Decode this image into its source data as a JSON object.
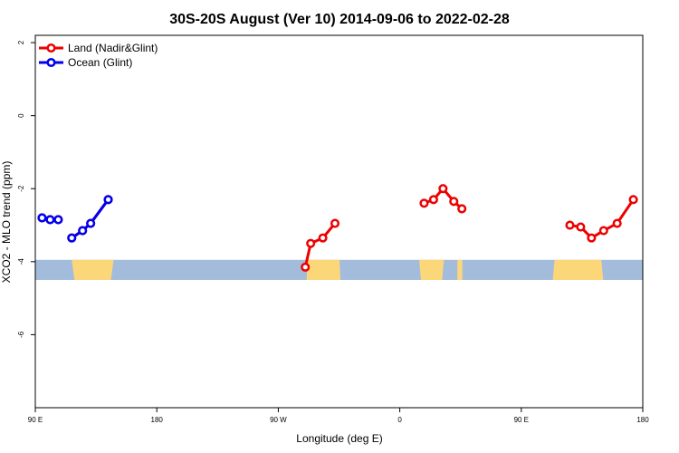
{
  "chart_data": {
    "type": "line",
    "title": "30S-20S August (Ver 10)   2014-09-06 to 2022-02-28",
    "xlabel": "Longitude (deg E)",
    "ylabel": "XCO2 - MLO trend (ppm)",
    "xlim": [
      90,
      540
    ],
    "ylim": [
      -8,
      2.2
    ],
    "x_ticks": [
      {
        "value": 90,
        "label": "90 E"
      },
      {
        "value": 180,
        "label": "180"
      },
      {
        "value": 270,
        "label": "90 W"
      },
      {
        "value": 360,
        "label": "0"
      },
      {
        "value": 450,
        "label": "90 E"
      },
      {
        "value": 540,
        "label": "180"
      }
    ],
    "y_ticks": [
      {
        "value": 2,
        "label": "2"
      },
      {
        "value": 0,
        "label": "0"
      },
      {
        "value": -2,
        "label": "-2"
      },
      {
        "value": -4,
        "label": "-4"
      },
      {
        "value": -6,
        "label": "-6"
      }
    ],
    "legend_position": "top-left",
    "grid": false,
    "series": [
      {
        "name": "Land (Nadir&Glint)",
        "color": "#ee0000",
        "segments": [
          [
            [
              95,
              -2.8
            ],
            [
              101,
              -2.85
            ],
            [
              107,
              -2.85
            ]
          ],
          [
            [
              117,
              -3.35
            ],
            [
              125,
              -3.15
            ],
            [
              131,
              -2.95
            ],
            [
              144,
              -2.3
            ]
          ],
          [
            [
              290,
              -4.15
            ],
            [
              294,
              -3.5
            ],
            [
              303,
              -3.35
            ],
            [
              312,
              -2.95
            ]
          ],
          [
            [
              378,
              -2.4
            ],
            [
              385,
              -2.3
            ],
            [
              392,
              -2.0
            ],
            [
              400,
              -2.35
            ],
            [
              406,
              -2.55
            ]
          ],
          [
            [
              486,
              -3.0
            ],
            [
              494,
              -3.05
            ],
            [
              502,
              -3.35
            ],
            [
              511,
              -3.15
            ],
            [
              521,
              -2.95
            ],
            [
              533,
              -2.3
            ]
          ]
        ]
      },
      {
        "name": "Ocean (Glint)",
        "color": "#0000ee",
        "segments": [
          [
            [
              95,
              -2.8
            ],
            [
              101,
              -2.85
            ],
            [
              107,
              -2.85
            ]
          ],
          [
            [
              117,
              -3.35
            ],
            [
              125,
              -3.15
            ],
            [
              131,
              -2.95
            ],
            [
              144,
              -2.3
            ]
          ]
        ]
      }
    ]
  },
  "map_band": {
    "y_range": [
      -4.5,
      -3.95
    ],
    "ocean_color": "#a4bcdc",
    "land_color": "#fcd77a"
  }
}
